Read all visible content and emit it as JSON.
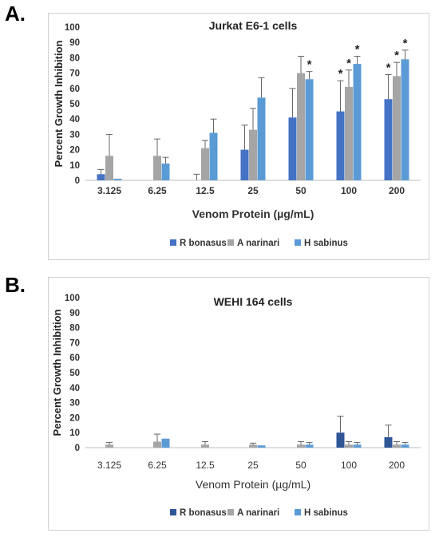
{
  "panel_labels": [
    "A.",
    "B."
  ],
  "chart_data": [
    {
      "type": "bar",
      "title": "Jurkat E6-1 cells",
      "xlabel": "Venom Protein (µg/mL)",
      "ylabel": "Percent Growth Inhibition",
      "ylim": [
        0,
        100
      ],
      "yticks": [
        0,
        10,
        20,
        30,
        40,
        50,
        60,
        70,
        80,
        90,
        100
      ],
      "grid": false,
      "legend_position": "bottom",
      "categories": [
        "3.125",
        "6.25",
        "12.5",
        "25",
        "50",
        "100",
        "200"
      ],
      "series": [
        {
          "name": "R bonasus",
          "color": "#4472c4",
          "values": [
            4,
            0,
            0,
            20,
            41,
            45,
            53
          ],
          "errors": [
            3,
            0,
            4,
            16,
            19,
            20,
            16
          ],
          "significant": [
            false,
            false,
            false,
            false,
            false,
            true,
            true
          ]
        },
        {
          "name": "A narinari",
          "color": "#a5a5a5",
          "values": [
            16,
            16,
            21,
            33,
            70,
            61,
            68
          ],
          "errors": [
            14,
            11,
            5,
            14,
            11,
            11,
            9
          ],
          "significant": [
            false,
            false,
            false,
            false,
            false,
            true,
            true
          ]
        },
        {
          "name": "H sabinus",
          "color": "#5b9bd5",
          "values": [
            1,
            11,
            31,
            54,
            66,
            76,
            79
          ],
          "errors": [
            0,
            4,
            9,
            13,
            5,
            5,
            6
          ],
          "significant": [
            false,
            false,
            false,
            false,
            true,
            true,
            true
          ]
        }
      ],
      "annotation_symbol": "*"
    },
    {
      "type": "bar",
      "title": "WEHI 164 cells",
      "xlabel": "Venom Protein (µg/mL)",
      "ylabel": "Percent Growth Inhibition",
      "ylim": [
        0,
        100
      ],
      "yticks": [
        0,
        10,
        20,
        30,
        40,
        50,
        60,
        70,
        80,
        90,
        100
      ],
      "grid": false,
      "legend_position": "bottom",
      "categories": [
        "3.125",
        "6.25",
        "12.5",
        "25",
        "50",
        "100",
        "200"
      ],
      "series": [
        {
          "name": "R bonasus",
          "color": "#2f5597",
          "values": [
            0,
            0,
            0,
            0,
            0,
            10,
            7
          ],
          "errors": [
            0,
            0,
            0,
            0,
            0,
            11,
            8
          ],
          "significant": [
            false,
            false,
            false,
            false,
            false,
            false,
            false
          ]
        },
        {
          "name": "A narinari",
          "color": "#a5a5a5",
          "values": [
            2,
            4,
            2,
            2,
            2,
            2,
            2
          ],
          "errors": [
            1.5,
            5,
            2,
            1,
            2,
            2,
            2
          ],
          "significant": [
            false,
            false,
            false,
            false,
            false,
            false,
            false
          ]
        },
        {
          "name": "H sabinus",
          "color": "#5b9bd5",
          "values": [
            0,
            6,
            0,
            1.5,
            2,
            2,
            2
          ],
          "errors": [
            0,
            0,
            0,
            0,
            1.5,
            1.5,
            1.5
          ],
          "significant": [
            false,
            false,
            false,
            false,
            false,
            false,
            false
          ]
        }
      ],
      "annotation_symbol": "*"
    }
  ]
}
